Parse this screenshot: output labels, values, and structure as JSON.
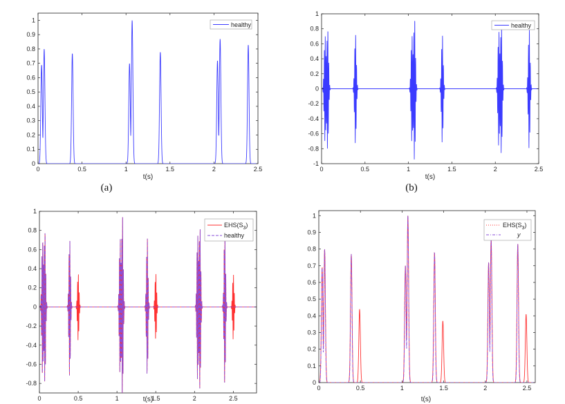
{
  "colors": {
    "healthy": "#3b3bff",
    "ehs": "#ff3030",
    "dashed": "#8a4fd8",
    "axis": "#222222"
  },
  "chart_data": [
    {
      "id": "a",
      "type": "line",
      "caption": "(a)",
      "xlabel": "t(s)",
      "ylabel": "",
      "xlim": [
        0,
        2.5
      ],
      "ylim": [
        0,
        1.05
      ],
      "xticks": [
        0,
        0.5,
        1,
        1.5,
        2,
        2.5
      ],
      "xtick_labels": [
        "0",
        "0.5",
        "1",
        "1.5",
        "2",
        "2.5"
      ],
      "yticks": [
        0,
        0.1,
        0.2,
        0.3,
        0.4,
        0.5,
        0.6,
        0.7,
        0.8,
        0.9,
        1
      ],
      "ytick_labels": [
        "0",
        "0.1",
        "0.2",
        "0.3",
        "0.4",
        "0.5",
        "0.6",
        "0.7",
        "0.8",
        "0.9",
        "1"
      ],
      "legend": [
        "healthy"
      ],
      "legend_position": "top-right",
      "series": [
        {
          "name": "healthy",
          "kind": "envelope",
          "color_key": "healthy",
          "peaks": [
            [
              0.04,
              0.69
            ],
            [
              0.07,
              0.8
            ],
            [
              0.39,
              0.77
            ],
            [
              1.04,
              0.7
            ],
            [
              1.07,
              1.0
            ],
            [
              1.39,
              0.78
            ],
            [
              2.04,
              0.72
            ],
            [
              2.07,
              0.87
            ],
            [
              2.39,
              0.83
            ]
          ],
          "width": 0.012
        }
      ]
    },
    {
      "id": "b",
      "type": "line",
      "caption": "(b)",
      "xlabel": "t(s)",
      "ylabel": "",
      "xlim": [
        0,
        2.5
      ],
      "ylim": [
        -1,
        1
      ],
      "xticks": [
        0,
        0.5,
        1,
        1.5,
        2,
        2.5
      ],
      "xtick_labels": [
        "0",
        "0.5",
        "1",
        "1.5",
        "2",
        "2.5"
      ],
      "yticks": [
        -1,
        -0.8,
        -0.6,
        -0.4,
        -0.2,
        0,
        0.2,
        0.4,
        0.6,
        0.8,
        1
      ],
      "ytick_labels": [
        "-1",
        "-0.8",
        "-0.6",
        "-0.4",
        "-0.2",
        "0",
        "0.2",
        "0.4",
        "0.6",
        "0.8",
        "1"
      ],
      "legend": [
        "healthy"
      ],
      "legend_position": "top-right",
      "series": [
        {
          "name": "healthy",
          "kind": "oscillation",
          "color_key": "healthy",
          "bursts": [
            [
              0.04,
              0.72
            ],
            [
              0.07,
              0.82
            ],
            [
              0.39,
              0.75
            ],
            [
              1.04,
              0.72
            ],
            [
              1.07,
              0.97
            ],
            [
              1.39,
              0.74
            ],
            [
              2.04,
              0.78
            ],
            [
              2.07,
              0.88
            ],
            [
              2.39,
              0.82
            ]
          ]
        }
      ]
    },
    {
      "id": "c",
      "type": "line",
      "caption": "",
      "xlabel": "t(s)",
      "ylabel": "",
      "xlim": [
        0,
        2.8
      ],
      "ylim": [
        -0.9,
        1
      ],
      "xticks": [
        0,
        0.5,
        1,
        1.5,
        2,
        2.5
      ],
      "xtick_labels": [
        "0",
        "0.5",
        "1",
        "1.5",
        "2",
        "2.5"
      ],
      "yticks": [
        -0.8,
        -0.6,
        -0.4,
        -0.2,
        0,
        0.2,
        0.4,
        0.6,
        0.8,
        1
      ],
      "ytick_labels": [
        "-0.8",
        "-0.6",
        "-0.4",
        "-0.2",
        "0",
        "0.2",
        "0.4",
        "0.6",
        "0.8",
        "1"
      ],
      "legend": [
        "EHS(S",
        "healthy"
      ],
      "legend_sub": "3",
      "legend_close": ")",
      "legend_position": "top-right",
      "series": [
        {
          "name": "EHS(S3)",
          "kind": "oscillation",
          "color_key": "ehs",
          "bursts": [
            [
              0.04,
              0.72
            ],
            [
              0.07,
              0.82
            ],
            [
              0.39,
              0.75
            ],
            [
              0.5,
              0.36
            ],
            [
              1.04,
              0.72
            ],
            [
              1.07,
              0.97
            ],
            [
              1.39,
              0.74
            ],
            [
              1.5,
              0.36
            ],
            [
              2.04,
              0.78
            ],
            [
              2.07,
              0.88
            ],
            [
              2.39,
              0.82
            ],
            [
              2.5,
              0.35
            ]
          ]
        },
        {
          "name": "healthy",
          "kind": "oscillation",
          "color_key": "dashed",
          "bursts": [
            [
              0.04,
              0.72
            ],
            [
              0.07,
              0.82
            ],
            [
              0.39,
              0.75
            ],
            [
              1.04,
              0.72
            ],
            [
              1.07,
              0.97
            ],
            [
              1.39,
              0.74
            ],
            [
              2.04,
              0.78
            ],
            [
              2.07,
              0.88
            ],
            [
              2.39,
              0.82
            ]
          ]
        }
      ]
    },
    {
      "id": "d",
      "type": "line",
      "caption": "",
      "xlabel": "t(s)",
      "ylabel": "",
      "xlim": [
        0,
        2.6
      ],
      "ylim": [
        0,
        1.03
      ],
      "xticks": [
        0,
        0.5,
        1,
        1.5,
        2,
        2.5
      ],
      "xtick_labels": [
        "0",
        "0.5",
        "1",
        "1.5",
        "2",
        "2.5"
      ],
      "yticks": [
        0,
        0.1,
        0.2,
        0.3,
        0.4,
        0.5,
        0.6,
        0.7,
        0.8,
        0.9,
        1
      ],
      "ytick_labels": [
        "0",
        "0.1",
        "0.2",
        "0.3",
        "0.4",
        "0.5",
        "0.6",
        "0.7",
        "0.8",
        "0.9",
        "1"
      ],
      "legend": [
        "EHS(S",
        "y"
      ],
      "legend_sub": "3",
      "legend_close": ")",
      "legend_position": "top-right",
      "series": [
        {
          "name": "EHS(S3)",
          "kind": "envelope",
          "color_key": "ehs",
          "peaks": [
            [
              0.04,
              0.69
            ],
            [
              0.07,
              0.8
            ],
            [
              0.39,
              0.77
            ],
            [
              0.49,
              0.44
            ],
            [
              1.04,
              0.7
            ],
            [
              1.07,
              1.0
            ],
            [
              1.39,
              0.78
            ],
            [
              1.49,
              0.37
            ],
            [
              2.04,
              0.72
            ],
            [
              2.07,
              0.87
            ],
            [
              2.39,
              0.83
            ],
            [
              2.49,
              0.41
            ]
          ],
          "width": 0.013
        },
        {
          "name": "y",
          "kind": "envelope",
          "color_key": "dashed",
          "peaks": [
            [
              0.04,
              0.69
            ],
            [
              0.07,
              0.8
            ],
            [
              0.39,
              0.77
            ],
            [
              1.04,
              0.7
            ],
            [
              1.07,
              1.0
            ],
            [
              1.39,
              0.78
            ],
            [
              2.04,
              0.72
            ],
            [
              2.07,
              0.87
            ],
            [
              2.39,
              0.83
            ]
          ],
          "width": 0.012
        }
      ]
    }
  ]
}
